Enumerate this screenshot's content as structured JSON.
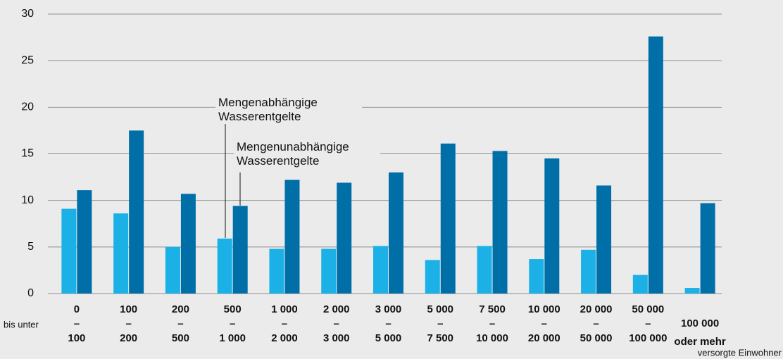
{
  "chart_data": {
    "type": "bar",
    "categories": [
      [
        "0",
        "–",
        "100"
      ],
      [
        "100",
        "–",
        "200"
      ],
      [
        "200",
        "–",
        "500"
      ],
      [
        "500",
        "–",
        "1 000"
      ],
      [
        "1 000",
        "–",
        "2 000"
      ],
      [
        "2 000",
        "–",
        "3 000"
      ],
      [
        "3 000",
        "–",
        "5 000"
      ],
      [
        "5 000",
        "–",
        "7 500"
      ],
      [
        "7 500",
        "–",
        "10 000"
      ],
      [
        "10 000",
        "–",
        "20 000"
      ],
      [
        "20 000",
        "–",
        "50 000"
      ],
      [
        "50 000",
        "–",
        "100 000"
      ],
      [
        "100 000",
        "oder mehr"
      ]
    ],
    "category_prefix": "bis unter",
    "x_label": "versorgte Einwohner",
    "series": [
      {
        "name": "Mengenabhängige Wasserentgelte",
        "color": "#1cb1e6",
        "values": [
          9.1,
          8.6,
          5.0,
          5.9,
          4.8,
          4.8,
          5.1,
          3.6,
          5.1,
          3.7,
          4.7,
          2.0,
          0.6
        ]
      },
      {
        "name": "Mengenunabhängige Wasserentgelte",
        "color": "#006fa8",
        "values": [
          11.1,
          17.5,
          10.7,
          9.4,
          12.2,
          11.9,
          13.0,
          16.1,
          15.3,
          14.5,
          11.6,
          27.6,
          9.7
        ]
      }
    ],
    "ylim": [
      0,
      30
    ],
    "yticks": [
      0,
      5,
      10,
      15,
      20,
      25,
      30
    ],
    "grid": true
  }
}
